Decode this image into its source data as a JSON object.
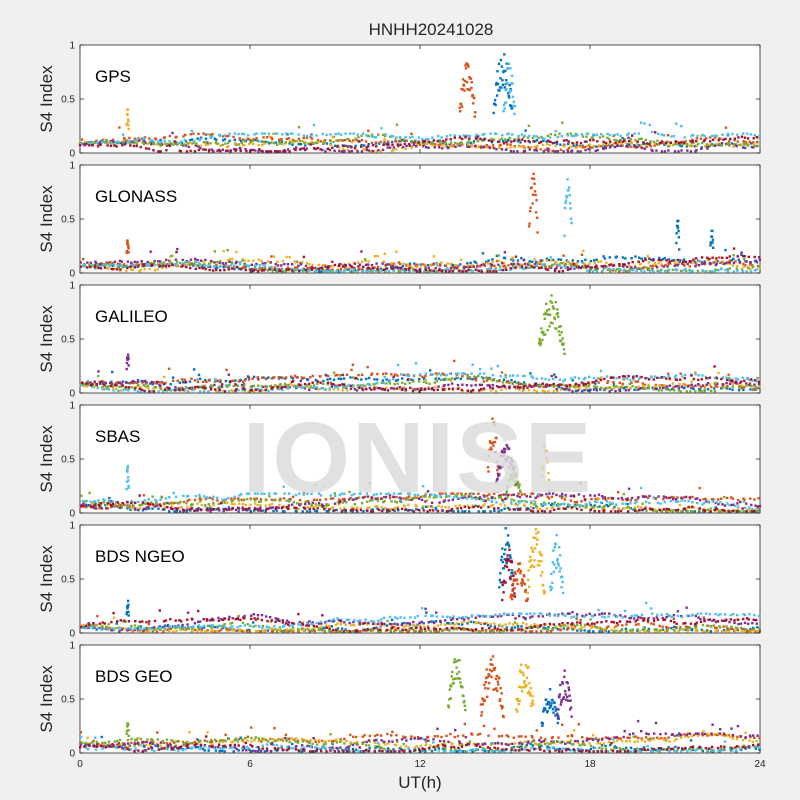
{
  "chart_data": {
    "type": "scatter",
    "title": "HNHH20241028",
    "xlabel": "UT(h)",
    "ylabel": "S4 Index",
    "xlim": [
      0,
      24
    ],
    "ylim": [
      0,
      1
    ],
    "xticks": [
      "0",
      "6",
      "12",
      "18",
      "24"
    ],
    "yticks": [
      "0",
      "0.5",
      "1"
    ],
    "watermark": "IONISE",
    "series_colors": [
      "#0072BD",
      "#D95319",
      "#EDB120",
      "#7E2F8E",
      "#77AC30",
      "#4DBEEE",
      "#A2142F"
    ],
    "panels": [
      {
        "name": "GPS",
        "baseline": [
          0.06,
          0.1
        ],
        "spikes": [
          {
            "x_range": [
              13.4,
              13.95
            ],
            "peak": 0.85,
            "color": "#D95319"
          },
          {
            "x_range": [
              14.6,
              15.25
            ],
            "peak": 0.95,
            "color": "#0072BD"
          },
          {
            "x_range": [
              14.95,
              15.35
            ],
            "peak": 0.85,
            "color": "#4DBEEE"
          },
          {
            "x_range": [
              1.65,
              1.72
            ],
            "peak": 0.47,
            "color": "#EDB120"
          }
        ]
      },
      {
        "name": "GLONASS",
        "baseline": [
          0.05,
          0.1
        ],
        "spikes": [
          {
            "x_range": [
              15.85,
              16.15
            ],
            "peak": 1.0,
            "color": "#D95319"
          },
          {
            "x_range": [
              17.1,
              17.35
            ],
            "peak": 1.0,
            "color": "#4DBEEE"
          },
          {
            "x_range": [
              21.05,
              21.15
            ],
            "peak": 0.52,
            "color": "#0072BD"
          },
          {
            "x_range": [
              22.25,
              22.35
            ],
            "peak": 0.45,
            "color": "#0072BD"
          },
          {
            "x_range": [
              1.65,
              1.72
            ],
            "peak": 0.32,
            "color": "#D95319"
          }
        ]
      },
      {
        "name": "GALILEO",
        "baseline": [
          0.05,
          0.1
        ],
        "spikes": [
          {
            "x_range": [
              16.2,
              17.1
            ],
            "peak": 0.95,
            "color": "#77AC30"
          },
          {
            "x_range": [
              1.65,
              1.72
            ],
            "peak": 0.45,
            "color": "#7E2F8E"
          }
        ]
      },
      {
        "name": "SBAS",
        "baseline": [
          0.06,
          0.1
        ],
        "spikes": [
          {
            "x_range": [
              14.4,
              14.75
            ],
            "peak": 0.95,
            "color": "#D95319"
          },
          {
            "x_range": [
              14.7,
              15.4
            ],
            "peak": 0.65,
            "color": "#7E2F8E"
          },
          {
            "x_range": [
              15.05,
              15.55
            ],
            "peak": 0.4,
            "color": "#77AC30"
          },
          {
            "x_range": [
              16.3,
              16.55
            ],
            "peak": 0.7,
            "color": "#EDB120"
          },
          {
            "x_range": [
              1.65,
              1.72
            ],
            "peak": 0.47,
            "color": "#4DBEEE"
          }
        ]
      },
      {
        "name": "BDS NGEO",
        "baseline": [
          0.05,
          0.1
        ],
        "spikes": [
          {
            "x_range": [
              14.8,
              15.3
            ],
            "peak": 0.98,
            "color": "#0072BD"
          },
          {
            "x_range": [
              14.9,
              15.35
            ],
            "peak": 0.8,
            "color": "#A2142F"
          },
          {
            "x_range": [
              15.2,
              15.8
            ],
            "peak": 0.65,
            "color": "#D95319"
          },
          {
            "x_range": [
              15.8,
              16.4
            ],
            "peak": 0.98,
            "color": "#EDB120"
          },
          {
            "x_range": [
              16.6,
              17.05
            ],
            "peak": 0.92,
            "color": "#4DBEEE"
          },
          {
            "x_range": [
              1.65,
              1.72
            ],
            "peak": 0.32,
            "color": "#0072BD"
          }
        ]
      },
      {
        "name": "BDS GEO",
        "baseline": [
          0.04,
          0.1
        ],
        "spikes": [
          {
            "x_range": [
              13.0,
              13.6
            ],
            "peak": 0.93,
            "color": "#77AC30"
          },
          {
            "x_range": [
              14.15,
              14.95
            ],
            "peak": 0.9,
            "color": "#D95319"
          },
          {
            "x_range": [
              15.4,
              16.0
            ],
            "peak": 0.92,
            "color": "#EDB120"
          },
          {
            "x_range": [
              16.3,
              16.9
            ],
            "peak": 0.6,
            "color": "#0072BD"
          },
          {
            "x_range": [
              16.85,
              17.35
            ],
            "peak": 0.78,
            "color": "#7E2F8E"
          },
          {
            "x_range": [
              1.65,
              1.72
            ],
            "peak": 0.32,
            "color": "#77AC30"
          }
        ]
      }
    ]
  }
}
